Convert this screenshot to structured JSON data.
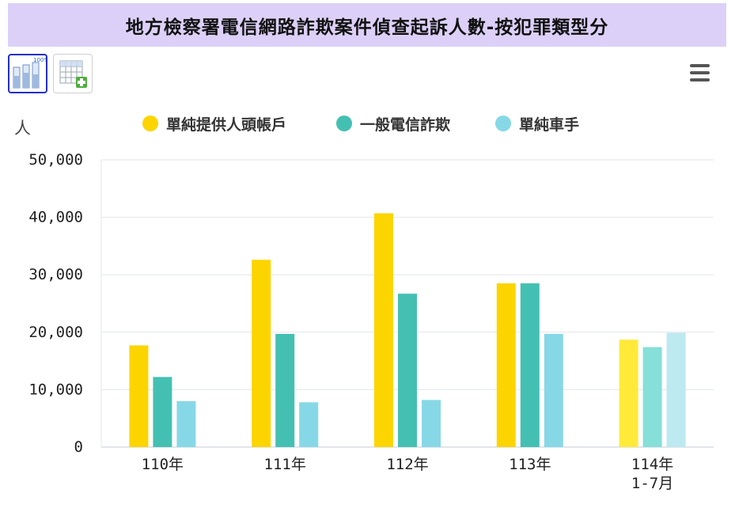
{
  "title": "地方檢察署電信網路詐欺案件偵查起訴人數-按犯罪類型分",
  "toolbar": {
    "buttons": [
      {
        "name": "chart-view",
        "icon": "bar-chart-icon",
        "active": true
      },
      {
        "name": "table-view",
        "icon": "table-add-icon",
        "active": false
      }
    ],
    "menu_icon": "hamburger-menu-icon"
  },
  "chart_data": {
    "type": "bar",
    "ylabel": "人",
    "xlabel": "",
    "ylim": [
      0,
      50000
    ],
    "yticks": [
      0,
      10000,
      20000,
      30000,
      40000,
      50000
    ],
    "ytick_labels": [
      "0",
      "10,000",
      "20,000",
      "30,000",
      "40,000",
      "50,000"
    ],
    "grid": true,
    "legend_position": "top-center",
    "categories": [
      [
        "110年"
      ],
      [
        "111年"
      ],
      [
        "112年"
      ],
      [
        "113年"
      ],
      [
        "114年",
        "1-7月"
      ]
    ],
    "series": [
      {
        "name": "單純提供人頭帳戶",
        "color": "#fcd500",
        "light_color": "#ffea3a",
        "values": [
          17700,
          32600,
          40700,
          28500,
          18700
        ]
      },
      {
        "name": "一般電信詐欺",
        "color": "#44c0b2",
        "light_color": "#86dfd9",
        "values": [
          12200,
          19700,
          26700,
          28500,
          17400
        ]
      },
      {
        "name": "單純車手",
        "color": "#87d8e6",
        "light_color": "#bde9f0",
        "values": [
          8000,
          7800,
          8200,
          19700,
          19900
        ]
      }
    ],
    "highlighted_category_index": 4
  }
}
